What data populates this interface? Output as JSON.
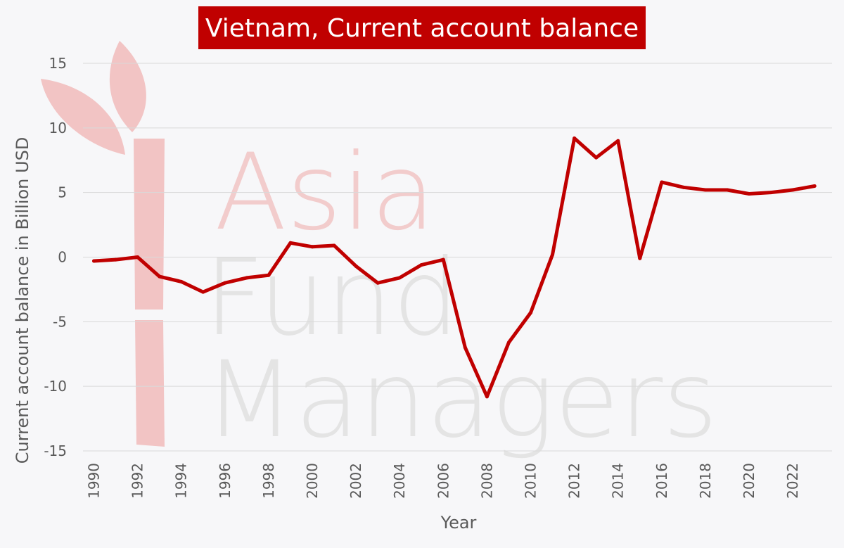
{
  "chart_data": {
    "type": "line",
    "title": "Vietnam, Current account balance",
    "xlabel": "Year",
    "ylabel": "Current account balance in Billion USD",
    "ylim": [
      -15,
      15
    ],
    "yticks": [
      "15",
      "10",
      "5",
      "0",
      "-5",
      "-10",
      "-15"
    ],
    "xticks": [
      "1990",
      "1992",
      "1994",
      "1996",
      "1998",
      "2000",
      "2002",
      "2004",
      "2006",
      "2008",
      "2010",
      "2012",
      "2014",
      "2016",
      "2018",
      "2020",
      "2022"
    ],
    "grid": true,
    "series": [
      {
        "color": "#c00000",
        "x": [
          1990,
          1991,
          1992,
          1993,
          1994,
          1995,
          1996,
          1997,
          1998,
          1999,
          2000,
          2001,
          2002,
          2003,
          2004,
          2005,
          2006,
          2007,
          2008,
          2009,
          2010,
          2011,
          2012,
          2013,
          2014,
          2015,
          2016,
          2017,
          2018,
          2019,
          2020,
          2021,
          2022,
          2023
        ],
        "values": [
          -0.3,
          -0.2,
          0.0,
          -1.5,
          -1.9,
          -2.7,
          -2.0,
          -1.6,
          -1.4,
          1.1,
          0.8,
          0.9,
          -0.7,
          -2.0,
          -1.6,
          -0.6,
          -0.2,
          -7.0,
          -10.8,
          -6.6,
          -4.3,
          0.2,
          9.2,
          7.7,
          9.0,
          -0.1,
          5.8,
          5.4,
          5.2,
          5.2,
          4.9,
          5.0,
          5.2,
          5.5
        ]
      }
    ]
  },
  "watermark": {
    "line1": "Asia",
    "line2": "Fund",
    "line3": "Managers"
  }
}
